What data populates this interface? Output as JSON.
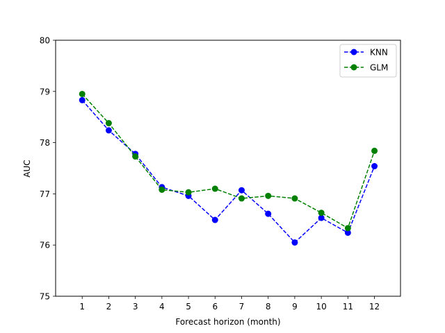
{
  "chart_data": {
    "type": "line",
    "title": "",
    "xlabel": "Forecast horizon (month)",
    "ylabel": "AUC",
    "x": [
      1,
      2,
      3,
      4,
      5,
      6,
      7,
      8,
      9,
      10,
      11,
      12
    ],
    "xticks": [
      "1",
      "2",
      "3",
      "4",
      "5",
      "6",
      "7",
      "8",
      "9",
      "10",
      "11",
      "12"
    ],
    "xlim": [
      0.0,
      12.98
    ],
    "ylim": [
      75,
      80
    ],
    "yticks": [
      "75",
      "76",
      "77",
      "78",
      "79",
      "80"
    ],
    "grid": false,
    "legend_position": "top-right",
    "series": [
      {
        "name": "KNN",
        "color": "#0000ff",
        "line_style": "dashed",
        "marker": "circle",
        "values": [
          78.83,
          78.24,
          77.78,
          77.13,
          76.96,
          76.49,
          77.07,
          76.61,
          76.05,
          76.53,
          76.24,
          77.54
        ]
      },
      {
        "name": "GLM",
        "color": "#008000",
        "line_style": "dashed",
        "marker": "circle",
        "values": [
          78.95,
          78.38,
          77.73,
          77.08,
          77.03,
          77.1,
          76.91,
          76.96,
          76.91,
          76.63,
          76.33,
          77.84
        ]
      }
    ]
  }
}
